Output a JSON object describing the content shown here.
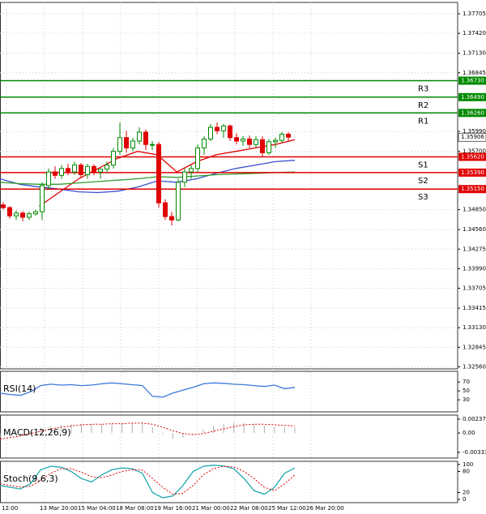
{
  "chart_data": [
    {
      "type": "candlestick",
      "open": [
        1.3492,
        1.3488,
        1.3476,
        1.348,
        1.3474,
        1.3479,
        1.3482,
        1.352,
        1.354,
        1.3535,
        1.3545,
        1.354,
        1.355,
        1.3536,
        1.3548,
        1.354,
        1.3544,
        1.355,
        1.357,
        1.359,
        1.3575,
        1.3585,
        1.3598,
        1.358,
        1.358,
        1.3495,
        1.3475,
        1.347,
        1.3525,
        1.354,
        1.3545,
        1.3575,
        1.3588,
        1.3605,
        1.36,
        1.3607,
        1.359,
        1.3585,
        1.3588,
        1.358,
        1.3587,
        1.3568,
        1.3584,
        1.3586,
        1.3595
      ],
      "high": [
        1.3496,
        1.349,
        1.3484,
        1.3483,
        1.3482,
        1.3485,
        1.3525,
        1.3545,
        1.3548,
        1.355,
        1.3552,
        1.3555,
        1.3553,
        1.3552,
        1.3551,
        1.3545,
        1.3555,
        1.3575,
        1.3612,
        1.36,
        1.359,
        1.3605,
        1.3602,
        1.3585,
        1.3584,
        1.35,
        1.3482,
        1.353,
        1.3545,
        1.355,
        1.358,
        1.3592,
        1.361,
        1.3612,
        1.361,
        1.3609,
        1.3596,
        1.3592,
        1.3593,
        1.3592,
        1.3592,
        1.3588,
        1.359,
        1.3598,
        1.3598
      ],
      "low": [
        1.3485,
        1.3472,
        1.347,
        1.3468,
        1.347,
        1.3476,
        1.347,
        1.3515,
        1.353,
        1.353,
        1.3535,
        1.3536,
        1.3532,
        1.353,
        1.3535,
        1.353,
        1.3538,
        1.3545,
        1.3565,
        1.3568,
        1.357,
        1.358,
        1.3572,
        1.3572,
        1.3488,
        1.347,
        1.3462,
        1.3468,
        1.3518,
        1.353,
        1.354,
        1.3565,
        1.3585,
        1.3595,
        1.359,
        1.3585,
        1.358,
        1.3578,
        1.3575,
        1.3576,
        1.3562,
        1.3565,
        1.3575,
        1.3583,
        1.3585
      ],
      "close": [
        1.3488,
        1.3476,
        1.348,
        1.3474,
        1.3479,
        1.3482,
        1.352,
        1.354,
        1.3535,
        1.3545,
        1.354,
        1.355,
        1.3536,
        1.3548,
        1.354,
        1.3544,
        1.355,
        1.357,
        1.359,
        1.3575,
        1.3585,
        1.3598,
        1.358,
        1.358,
        1.3495,
        1.3475,
        1.347,
        1.3525,
        1.354,
        1.3545,
        1.3575,
        1.3588,
        1.3605,
        1.36,
        1.3607,
        1.359,
        1.3585,
        1.3588,
        1.358,
        1.3587,
        1.3568,
        1.3584,
        1.3586,
        1.3595,
        1.35906
      ],
      "up_color": "#008a00",
      "down_color": "#e00000",
      "series": [
        {
          "color": "#e00000",
          "values": [
            null,
            null,
            1.349,
            1.351,
            1.353,
            1.3545,
            1.356,
            1.357,
            1.3565,
            1.354,
            1.3555,
            1.3565,
            1.357,
            1.3575,
            1.358,
            1.3587
          ]
        },
        {
          "color": "#3b4fd0",
          "values": [
            1.353,
            1.3522,
            1.3518,
            1.3515,
            1.3511,
            1.351,
            1.3512,
            1.3518,
            1.3527,
            1.3525,
            1.353,
            1.3538,
            1.3545,
            1.355,
            1.3555,
            1.3557
          ]
        },
        {
          "color": "#2e9e2e",
          "values": [
            1.3525,
            1.3523,
            1.3522,
            1.3522,
            1.3524,
            1.3526,
            1.3528,
            1.353,
            1.3533,
            1.3532,
            1.3534,
            1.3536,
            1.3537,
            1.3538,
            1.3539,
            1.354
          ]
        }
      ],
      "levels": [
        {
          "name": "R3",
          "value": 1.3673,
          "value_label": "1.36730",
          "color": "#008a00"
        },
        {
          "name": "R2",
          "value": 1.3649,
          "value_label": "1.36490",
          "color": "#008a00"
        },
        {
          "name": "R1",
          "value": 1.3626,
          "value_label": "1.36260",
          "color": "#008a00"
        },
        {
          "name": "S1",
          "value": 1.3562,
          "value_label": "1.35620",
          "color": "#e00000"
        },
        {
          "name": "S2",
          "value": 1.3539,
          "value_label": "1.35390",
          "color": "#e00000"
        },
        {
          "name": "S3",
          "value": 1.3515,
          "value_label": "1.35150",
          "color": "#e00000"
        }
      ],
      "current_price": 1.35906,
      "ylim": [
        1.3253,
        1.3787
      ],
      "yticks": [
        {
          "value": 1.37705,
          "label": "1.37705"
        },
        {
          "value": 1.3742,
          "label": "1.37420"
        },
        {
          "value": 1.3713,
          "label": "1.37130"
        },
        {
          "value": 1.36845,
          "label": "1.36845"
        },
        {
          "value": 1.3599,
          "label": "1.35990"
        },
        {
          "value": 1.357,
          "label": "1.35700"
        },
        {
          "value": 1.3485,
          "label": "1.34850"
        },
        {
          "value": 1.3456,
          "label": "1.34560"
        },
        {
          "value": 1.34275,
          "label": "1.34275"
        },
        {
          "value": 1.3399,
          "label": "1.33990"
        },
        {
          "value": 1.33705,
          "label": "1.33705"
        },
        {
          "value": 1.33415,
          "label": "1.33415"
        },
        {
          "value": 1.3313,
          "label": "1.33130"
        },
        {
          "value": 1.32845,
          "label": "1.32845"
        },
        {
          "value": 1.3256,
          "label": "1.32560"
        }
      ],
      "grid": true,
      "xlabels": [
        "12:00",
        "13 Mar 20:00",
        "15 Mar 04:00",
        "18 Mar 08:00",
        "19 Mar 16:00",
        "21 Mar 00:00",
        "22 Mar 08:00",
        "25 Mar 12:00",
        "26 Mar 20:00"
      ]
    },
    {
      "type": "line",
      "title": "RSI(14)",
      "ylim": [
        3,
        94
      ],
      "yticks": [
        70,
        50,
        30
      ],
      "series": [
        {
          "color": "#3c78d8",
          "values": [
            45,
            42,
            40,
            48,
            62,
            65,
            63,
            64,
            62,
            63,
            66,
            68,
            66,
            64,
            62,
            38,
            36,
            45,
            52,
            58,
            66,
            68,
            67,
            65,
            64,
            62,
            60,
            63,
            55,
            58
          ]
        }
      ]
    },
    {
      "type": "macd",
      "title": "MACD(12,26,9)",
      "ylim": [
        -0.0043,
        0.00307
      ],
      "yticks": [
        0.00237,
        {
          "value": 0,
          "label": "0.00"
        },
        -0.003331
      ],
      "series": [
        {
          "style": "bar",
          "color": "#b0b0b0",
          "values": [
            -0.0008,
            -0.0006,
            -0.0004,
            0.0002,
            0.0008,
            0.0012,
            0.0014,
            0.0015,
            0.0016,
            0.0015,
            0.0015,
            0.0016,
            0.0017,
            0.0018,
            0.0018,
            0.001,
            -0.0002,
            -0.001,
            -0.0008,
            -0.0002,
            0.0006,
            0.0012,
            0.0016,
            0.0018,
            0.0017,
            0.0015,
            0.0013,
            0.0011,
            0.001,
            0.001
          ]
        },
        {
          "style": "dotted",
          "color": "#e00000",
          "values": [
            -0.001,
            -0.0008,
            -0.0005,
            -0.0001,
            0.0003,
            0.0007,
            0.001,
            0.0012,
            0.0014,
            0.0015,
            0.0015,
            0.0016,
            0.0016,
            0.0017,
            0.0017,
            0.0015,
            0.001,
            0.0004,
            -0.0001,
            -0.0003,
            -0.0001,
            0.0003,
            0.0007,
            0.0011,
            0.0014,
            0.0015,
            0.0015,
            0.0014,
            0.0013,
            0.0012
          ]
        }
      ]
    },
    {
      "type": "line",
      "title": "Stoch(9,6,3)",
      "ylim": [
        -9,
        109
      ],
      "yticks": [
        100,
        80,
        20,
        0
      ],
      "series": [
        {
          "color": "#20a8b0",
          "values": [
            40,
            35,
            30,
            45,
            85,
            95,
            92,
            80,
            60,
            50,
            70,
            85,
            90,
            88,
            75,
            20,
            5,
            10,
            40,
            80,
            95,
            98,
            96,
            88,
            60,
            25,
            15,
            35,
            75,
            90
          ]
        },
        {
          "style": "dotted",
          "color": "#e00000",
          "values": [
            45,
            40,
            36,
            38,
            55,
            75,
            88,
            88,
            78,
            65,
            62,
            70,
            80,
            85,
            84,
            60,
            35,
            15,
            18,
            40,
            70,
            88,
            95,
            93,
            80,
            60,
            35,
            25,
            45,
            70
          ]
        }
      ]
    }
  ]
}
